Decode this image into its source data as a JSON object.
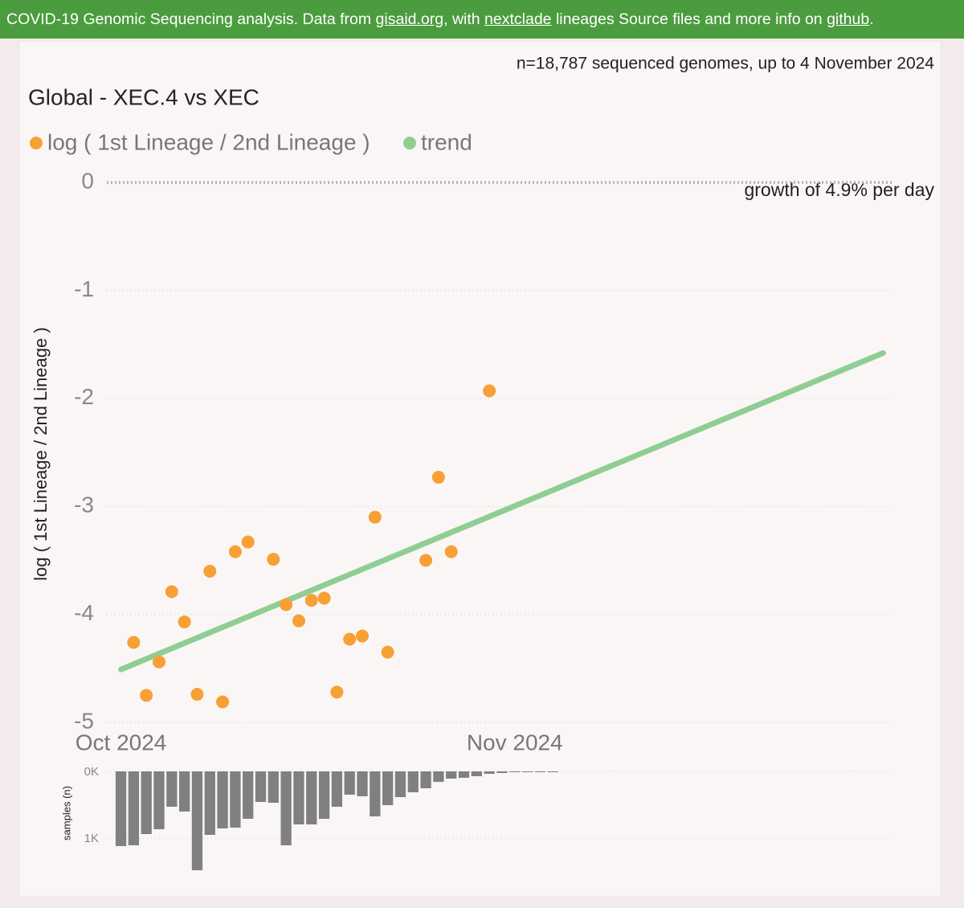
{
  "header": {
    "segments": [
      {
        "text": "COVID-19 Genomic Sequencing analysis. Data from "
      },
      {
        "text": "gisaid.org",
        "link": true
      },
      {
        "text": ", with "
      },
      {
        "text": "nextclade",
        "link": true
      },
      {
        "text": " lineages Source files and more info on "
      },
      {
        "text": "github",
        "link": true
      },
      {
        "text": "."
      }
    ]
  },
  "chart_data": [
    {
      "type": "scatter",
      "title": "Global - XEC.4 vs XEC",
      "subtitle": "n=18,787 sequenced genomes, up to 4 November 2024",
      "annotation": "growth of 4.9% per day",
      "y_label": "log ( 1st Lineage / 2nd Lineage )",
      "xlim": [
        -1.3,
        60.8
      ],
      "xticks": [
        {
          "value": 0,
          "label": "Oct 2024"
        },
        {
          "value": 31,
          "label": "Nov 2024"
        }
      ],
      "ylim": [
        -5.05,
        0.05
      ],
      "yticks": [
        0,
        -1,
        -2,
        -3,
        -4,
        -5
      ],
      "grid": true,
      "series": [
        {
          "name": "log ( 1st Lineage / 2nd Lineage )",
          "color": "#f7a035",
          "type": "scatter",
          "x": [
            1,
            2,
            3,
            4,
            5,
            6,
            7,
            8,
            9,
            10,
            12,
            13,
            14,
            15,
            16,
            17,
            18,
            19,
            20,
            21,
            24,
            25,
            26,
            29
          ],
          "values": [
            -4.26,
            -4.75,
            -4.44,
            -3.79,
            -4.07,
            -4.74,
            -3.6,
            -4.81,
            -3.42,
            -3.33,
            -3.49,
            -3.91,
            -4.06,
            -3.87,
            -3.85,
            -4.72,
            -4.23,
            -4.2,
            -3.1,
            -4.35,
            -3.5,
            -2.73,
            -3.42,
            -1.93
          ]
        },
        {
          "name": "trend",
          "color": "#8fce93",
          "type": "line",
          "x": [
            0,
            60
          ],
          "values": [
            -4.51,
            -1.58
          ]
        }
      ]
    },
    {
      "type": "bar",
      "y_label": "samples (n)",
      "color": "#808080",
      "xlim": [
        -1.3,
        60.8
      ],
      "ylim": [
        0,
        1500
      ],
      "yticks": [
        {
          "value": 0,
          "label": "0K"
        },
        {
          "value": 1000,
          "label": "1K"
        }
      ],
      "grid": true,
      "x": [
        0,
        1,
        2,
        3,
        4,
        5,
        6,
        7,
        8,
        9,
        10,
        11,
        12,
        13,
        14,
        15,
        16,
        17,
        18,
        19,
        20,
        21,
        22,
        23,
        24,
        25,
        26,
        27,
        28,
        29,
        30,
        31,
        32,
        33,
        34
      ],
      "values": [
        1120,
        1108,
        940,
        867,
        530,
        602,
        1482,
        952,
        855,
        843,
        711,
        458,
        470,
        1108,
        795,
        795,
        711,
        530,
        349,
        373,
        675,
        506,
        386,
        313,
        253,
        157,
        108,
        96,
        72,
        36,
        24,
        12,
        12,
        12,
        12
      ]
    }
  ]
}
